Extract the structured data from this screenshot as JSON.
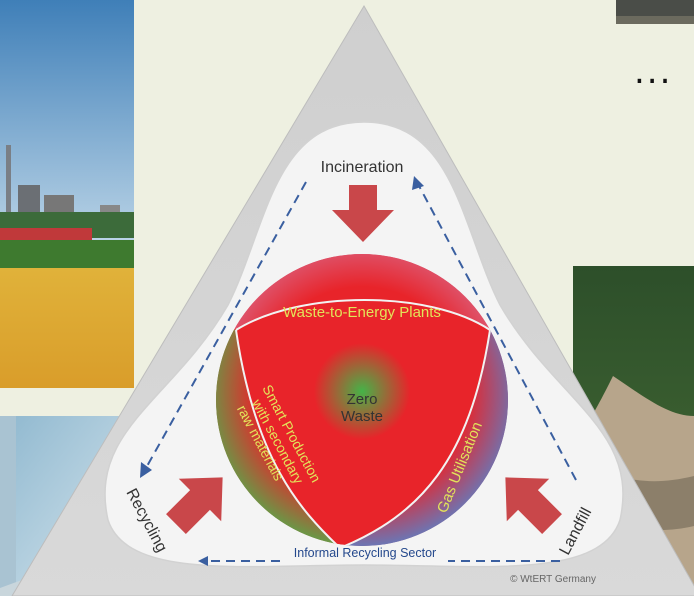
{
  "diagram": {
    "top_label": "Incineration",
    "left_label": "Recycling",
    "right_label": "Landfill",
    "bottom_label": "Informal Recycling Sector",
    "center_label_line1": "Zero",
    "center_label_line2": "Waste",
    "top_segment_label": "Waste-to-Energy Plants",
    "left_segment_line1": "Smart Production",
    "left_segment_line2": "with secondary",
    "left_segment_line3": "raw materials",
    "right_segment_label": "Gas Utilisation",
    "copyright": "© WtERT Germany"
  },
  "ellipsis": "...",
  "colors": {
    "arrow_red": "#c9474a",
    "dash_blue": "#3a5fa0",
    "segment_green": "#5aa64a",
    "segment_blue": "#5d7fc4",
    "center_red": "#e8242a",
    "label_yellow": "#e3e35a"
  }
}
